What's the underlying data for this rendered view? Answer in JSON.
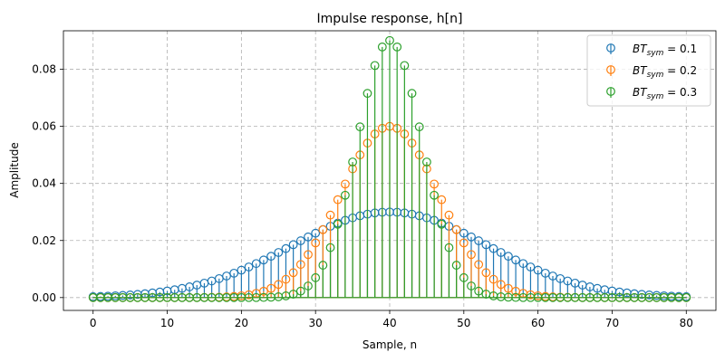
{
  "chart_data": {
    "type": "stem",
    "title": "Impulse response, h[n]",
    "xlabel": "Sample, n",
    "ylabel": "Amplitude",
    "xlim": [
      -4,
      84
    ],
    "ylim": [
      -0.0045,
      0.0935
    ],
    "xticks": [
      0,
      10,
      20,
      30,
      40,
      50,
      60,
      70,
      80
    ],
    "yticks": [
      0.0,
      0.02,
      0.04,
      0.06,
      0.08
    ],
    "ytick_labels": [
      "0.00",
      "0.02",
      "0.04",
      "0.06",
      "0.08"
    ],
    "grid": true,
    "legend_position": "top-right",
    "x_range": [
      0,
      80
    ],
    "series": [
      {
        "name": "BT_sym = 0.1",
        "legend_prefix": "BT",
        "legend_sub": "sym",
        "legend_suffix": " = 0.1",
        "color": "#1f77b4",
        "peak": 0.03,
        "sigma": 13.25
      },
      {
        "name": "BT_sym = 0.2",
        "legend_prefix": "BT",
        "legend_sub": "sym",
        "legend_suffix": " = 0.2",
        "color": "#ff7f0e",
        "peak": 0.06,
        "sigma": 6.62
      },
      {
        "name": "BT_sym = 0.3",
        "legend_prefix": "BT",
        "legend_sub": "sym",
        "legend_suffix": " = 0.3",
        "color": "#2ca02c",
        "peak": 0.0901,
        "sigma": 4.42
      }
    ]
  }
}
